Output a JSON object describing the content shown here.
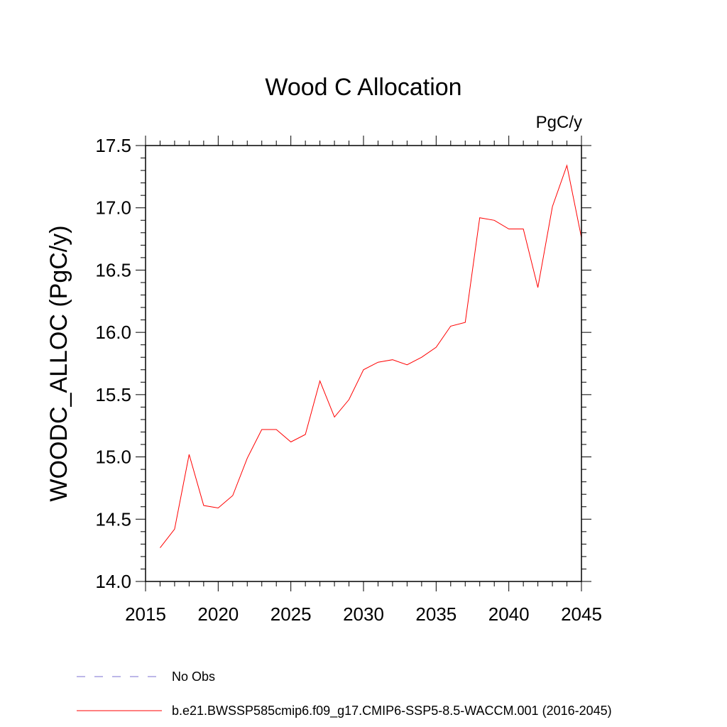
{
  "chart_data": {
    "type": "line",
    "title": "Wood C Allocation",
    "units_label": "PgC/y",
    "ylabel": "WOODC_ALLOC  (PgC/y)",
    "xlabel": "",
    "xlim": [
      2015,
      2045
    ],
    "ylim": [
      14.0,
      17.5
    ],
    "x_ticks": [
      2015,
      2020,
      2025,
      2030,
      2035,
      2040,
      2045
    ],
    "x_tick_labels": [
      "2015",
      "2020",
      "2025",
      "2030",
      "2035",
      "2040",
      "2045"
    ],
    "y_ticks": [
      14.0,
      14.5,
      15.0,
      15.5,
      16.0,
      16.5,
      17.0,
      17.5
    ],
    "y_tick_labels": [
      "14.0",
      "14.5",
      "15.0",
      "15.5",
      "16.0",
      "16.5",
      "17.0",
      "17.5"
    ],
    "grid": false,
    "series": [
      {
        "name": "b.e21.BWSSP585cmip6.f09_g17.CMIP6-SSP5-8.5-WACCM.001 (2016-2045)",
        "color": "#ff0000",
        "x": [
          2016,
          2017,
          2018,
          2019,
          2020,
          2021,
          2022,
          2023,
          2024,
          2025,
          2026,
          2027,
          2028,
          2029,
          2030,
          2031,
          2032,
          2033,
          2034,
          2035,
          2036,
          2037,
          2038,
          2039,
          2040,
          2041,
          2042,
          2043,
          2044,
          2045
        ],
        "y": [
          14.27,
          14.42,
          15.02,
          14.61,
          14.59,
          14.69,
          14.99,
          15.22,
          15.22,
          15.12,
          15.18,
          15.61,
          15.32,
          15.46,
          15.7,
          15.76,
          15.78,
          15.74,
          15.8,
          15.88,
          16.05,
          16.08,
          16.92,
          16.9,
          16.83,
          16.83,
          16.36,
          17.01,
          17.34,
          16.76
        ]
      }
    ],
    "legend": {
      "placement": "bottom-left",
      "entries": [
        {
          "label": "No Obs",
          "color": "#7b6fd0",
          "style": "dashed"
        },
        {
          "label": "b.e21.BWSSP585cmip6.f09_g17.CMIP6-SSP5-8.5-WACCM.001 (2016-2045)",
          "color": "#ff0000",
          "style": "solid"
        }
      ]
    }
  }
}
